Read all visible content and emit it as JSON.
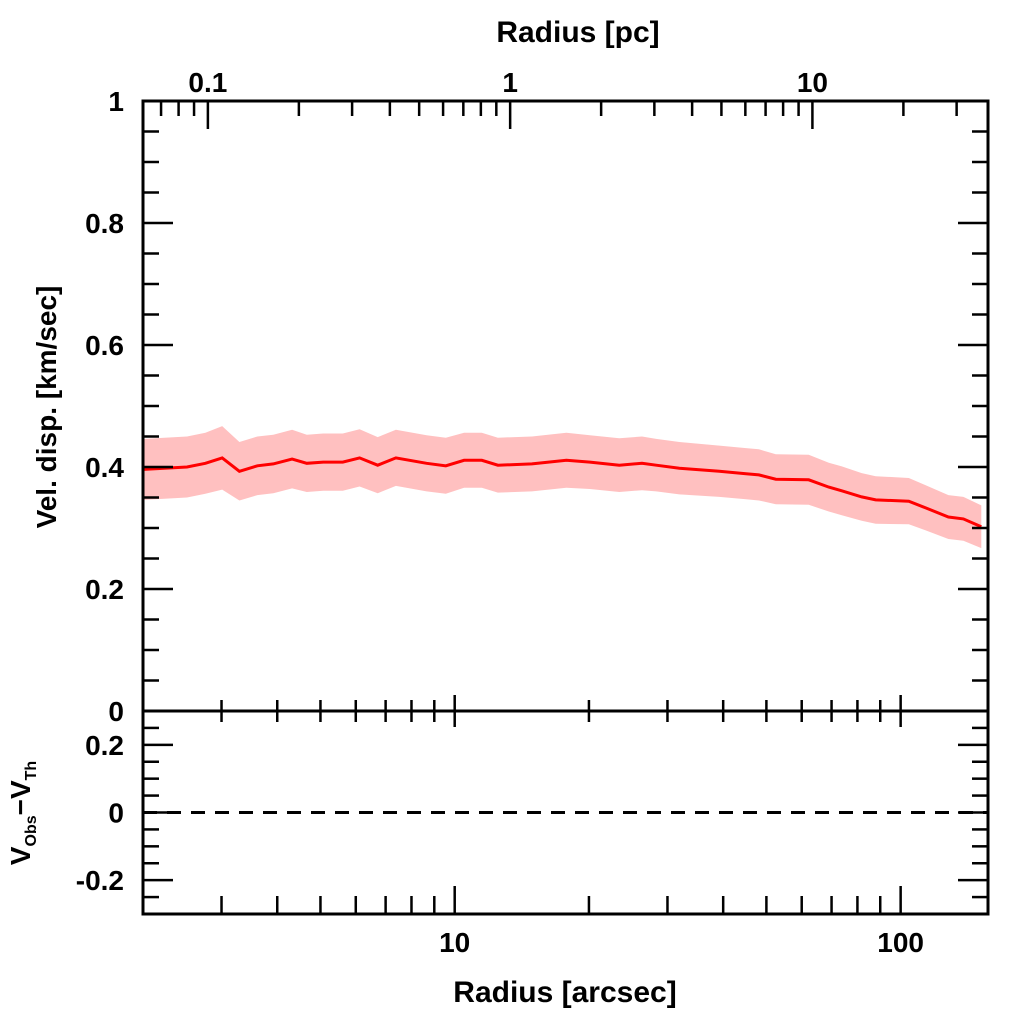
{
  "chart_data": {
    "type": "line",
    "top_panel": {
      "ylabel": "Vel. disp. [km/sec]",
      "ylim": [
        0,
        1
      ],
      "yticks": [
        0,
        0.2,
        0.4,
        0.6,
        0.8,
        1
      ],
      "ytick_labels": [
        "0",
        "0.2",
        "0.4",
        "0.6",
        "0.8",
        "1"
      ],
      "series": [
        {
          "name": "velocity dispersion",
          "color": "#ff0000",
          "band_color": "#ffc0c0",
          "x": [
            2.01,
            2.51,
            2.76,
            3.01,
            3.29,
            3.61,
            3.92,
            4.32,
            4.66,
            5.07,
            5.61,
            6.12,
            6.72,
            7.38,
            8.65,
            9.55,
            10.5,
            11.5,
            12.5,
            14.9,
            17.8,
            20.1,
            23.4,
            26.3,
            28.3,
            31.9,
            39.2,
            45.0,
            48.1,
            52.5,
            62.2,
            69.0,
            73.8,
            81.8,
            87.9,
            104.3,
            113.8,
            128.0,
            138.3,
            151.7
          ],
          "y": [
            0.396,
            0.4,
            0.406,
            0.415,
            0.393,
            0.402,
            0.405,
            0.413,
            0.406,
            0.408,
            0.408,
            0.415,
            0.403,
            0.415,
            0.406,
            0.402,
            0.411,
            0.411,
            0.403,
            0.405,
            0.411,
            0.408,
            0.403,
            0.406,
            0.403,
            0.398,
            0.393,
            0.389,
            0.387,
            0.38,
            0.379,
            0.367,
            0.361,
            0.351,
            0.346,
            0.344,
            0.333,
            0.318,
            0.315,
            0.302
          ],
          "err": [
            0.05,
            0.05,
            0.05,
            0.052,
            0.048,
            0.048,
            0.048,
            0.048,
            0.047,
            0.047,
            0.047,
            0.047,
            0.046,
            0.046,
            0.046,
            0.046,
            0.045,
            0.045,
            0.045,
            0.045,
            0.045,
            0.044,
            0.044,
            0.044,
            0.043,
            0.043,
            0.042,
            0.042,
            0.042,
            0.041,
            0.041,
            0.04,
            0.04,
            0.039,
            0.039,
            0.038,
            0.037,
            0.036,
            0.036,
            0.035
          ]
        }
      ]
    },
    "bottom_panel": {
      "ylabel": "V",
      "ylabel_sub1": "Obs",
      "ylabel_mid": "−V",
      "ylabel_sub2": "Th",
      "ylim": [
        -0.3,
        0.3
      ],
      "yticks": [
        -0.2,
        0,
        0.2
      ],
      "ytick_labels": [
        "-0.2",
        "0",
        "0.2"
      ],
      "reference_line": {
        "y": 0,
        "style": "dashed"
      }
    },
    "xaxis_bottom": {
      "label": "Radius [arcsec]",
      "scale": "log",
      "xlim": [
        2.0,
        157
      ],
      "ticks": [
        10,
        100
      ],
      "tick_labels": [
        "10",
        "100"
      ]
    },
    "xaxis_top": {
      "label": "Radius [pc]",
      "scale": "log",
      "xlim": [
        0.061,
        38.1
      ],
      "ticks": [
        0.1,
        1,
        10
      ],
      "tick_labels": [
        "0.1",
        "1",
        "10"
      ]
    }
  }
}
